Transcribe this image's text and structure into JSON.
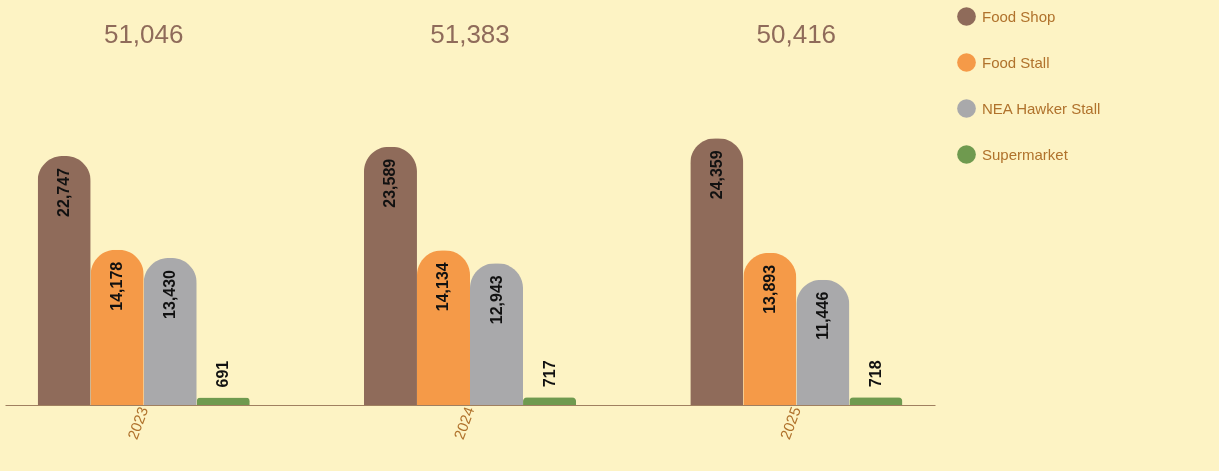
{
  "chart_data": {
    "type": "bar",
    "categories": [
      "2023",
      "2024",
      "2025"
    ],
    "series": [
      {
        "name": "Food Shop",
        "color": "#8f6b5a",
        "values": [
          22747,
          23589,
          24359
        ],
        "value_labels": [
          "22,747",
          "23,589",
          "24,359"
        ]
      },
      {
        "name": "Food Stall",
        "color": "#f59a48",
        "values": [
          14178,
          14134,
          13893
        ],
        "value_labels": [
          "14,178",
          "14,134",
          "13,893"
        ]
      },
      {
        "name": "NEA Hawker Stall",
        "color": "#a9a9ab",
        "values": [
          13430,
          12943,
          11446
        ],
        "value_labels": [
          "13,430",
          "12,943",
          "11,446"
        ]
      },
      {
        "name": "Supermarket",
        "color": "#6f9a4f",
        "values": [
          691,
          717,
          718
        ],
        "value_labels": [
          "691",
          "717",
          "718"
        ]
      }
    ],
    "annotations": [
      "51,046",
      "51,383",
      "50,416"
    ],
    "legend": "right",
    "grid": false
  }
}
